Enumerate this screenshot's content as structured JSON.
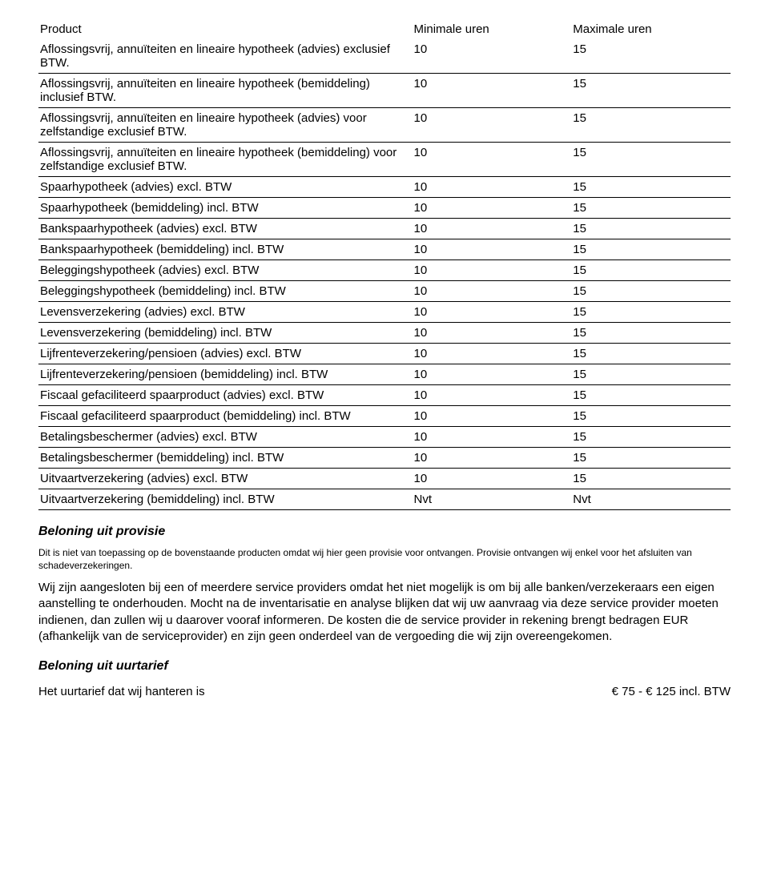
{
  "table": {
    "headers": {
      "product": "Product",
      "min": "Minimale uren",
      "max": "Maximale uren"
    },
    "rows": [
      {
        "product": "Aflossingsvrij, annuïteiten en lineaire hypotheek (advies) exclusief BTW.",
        "min": "10",
        "max": "15"
      },
      {
        "product": "Aflossingsvrij, annuïteiten en lineaire hypotheek (bemiddeling) inclusief BTW.",
        "min": "10",
        "max": "15"
      },
      {
        "product": "Aflossingsvrij, annuïteiten en lineaire hypotheek (advies) voor zelfstandige exclusief BTW.",
        "min": "10",
        "max": "15"
      },
      {
        "product": "Aflossingsvrij, annuïteiten en lineaire hypotheek (bemiddeling) voor zelfstandige exclusief BTW.",
        "min": "10",
        "max": "15"
      },
      {
        "product": "Spaarhypotheek (advies) excl. BTW",
        "min": "10",
        "max": "15"
      },
      {
        "product": "Spaarhypotheek (bemiddeling) incl. BTW",
        "min": "10",
        "max": "15"
      },
      {
        "product": "Bankspaarhypotheek (advies) excl. BTW",
        "min": "10",
        "max": "15"
      },
      {
        "product": "Bankspaarhypotheek (bemiddeling) incl. BTW",
        "min": "10",
        "max": "15"
      },
      {
        "product": "Beleggingshypotheek (advies) excl. BTW",
        "min": "10",
        "max": "15"
      },
      {
        "product": "Beleggingshypotheek (bemiddeling) incl. BTW",
        "min": "10",
        "max": "15"
      },
      {
        "product": "Levensverzekering (advies) excl. BTW",
        "min": "10",
        "max": "15"
      },
      {
        "product": "Levensverzekering (bemiddeling) incl. BTW",
        "min": "10",
        "max": "15"
      },
      {
        "product": "Lijfrenteverzekering/pensioen (advies) excl. BTW",
        "min": "10",
        "max": "15"
      },
      {
        "product": "Lijfrenteverzekering/pensioen (bemiddeling) incl. BTW",
        "min": "10",
        "max": "15"
      },
      {
        "product": "Fiscaal gefaciliteerd spaarproduct (advies) excl. BTW",
        "min": "10",
        "max": "15"
      },
      {
        "product": "Fiscaal gefaciliteerd spaarproduct (bemiddeling)   incl. BTW",
        "min": "10",
        "max": "15"
      },
      {
        "product": "Betalingsbeschermer (advies) excl. BTW",
        "min": "10",
        "max": "15"
      },
      {
        "product": "Betalingsbeschermer (bemiddeling) incl. BTW",
        "min": "10",
        "max": "15"
      },
      {
        "product": "Uitvaartverzekering (advies) excl. BTW",
        "min": "10",
        "max": "15"
      },
      {
        "product": "Uitvaartverzekering (bemiddeling) incl. BTW",
        "min": "Nvt",
        "max": "Nvt"
      }
    ]
  },
  "sections": {
    "provisie_heading": "Beloning uit provisie",
    "provisie_small": "Dit is niet van toepassing op de bovenstaande producten omdat wij hier geen provisie voor ontvangen. Provisie ontvangen wij enkel voor het afsluiten van schadeverzekeringen.",
    "provisie_para": "Wij zijn aangesloten bij een of meerdere service providers omdat het niet mogelijk is om bij alle banken/verzekeraars een eigen aanstelling te onderhouden. Mocht na de inventarisatie en analyse  blijken dat wij uw aanvraag via deze service provider moeten indienen, dan zullen wij u daarover vooraf informeren. De kosten die de service provider in rekening brengt bedragen EUR (afhankelijk van de serviceprovider)  en zijn geen onderdeel van de vergoeding die wij zijn overeengekomen.",
    "uurtarief_heading": "Beloning uit uurtarief",
    "uurtarief_label": "Het uurtarief dat wij hanteren is",
    "uurtarief_value": "€ 75 - € 125 incl. BTW"
  }
}
